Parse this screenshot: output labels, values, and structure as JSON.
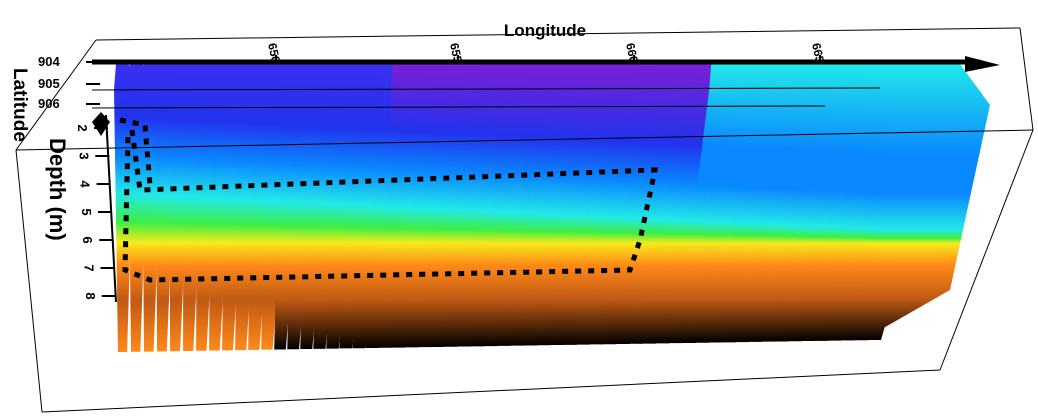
{
  "chart_data": {
    "type": "heatmap",
    "xlabel": "Longitude",
    "ylabel": "Depth (m)",
    "zlabel": "Latitude",
    "x_ticks": [
      "650",
      "655",
      "660",
      "665"
    ],
    "y_ticks": [
      "2",
      "3",
      "4",
      "5",
      "6",
      "7",
      "8"
    ],
    "z_ticks": [
      "904",
      "905",
      "906"
    ],
    "y_values": [
      2,
      3,
      4,
      5,
      6,
      7,
      8
    ],
    "slice_count": 58,
    "colormap": [
      "#7a1fd6",
      "#2233ee",
      "#0a88ff",
      "#22e8e8",
      "#3dee44",
      "#f7ea1a",
      "#ff8818",
      "#c05a14",
      "#000000"
    ],
    "grid": true,
    "legend": "none"
  }
}
